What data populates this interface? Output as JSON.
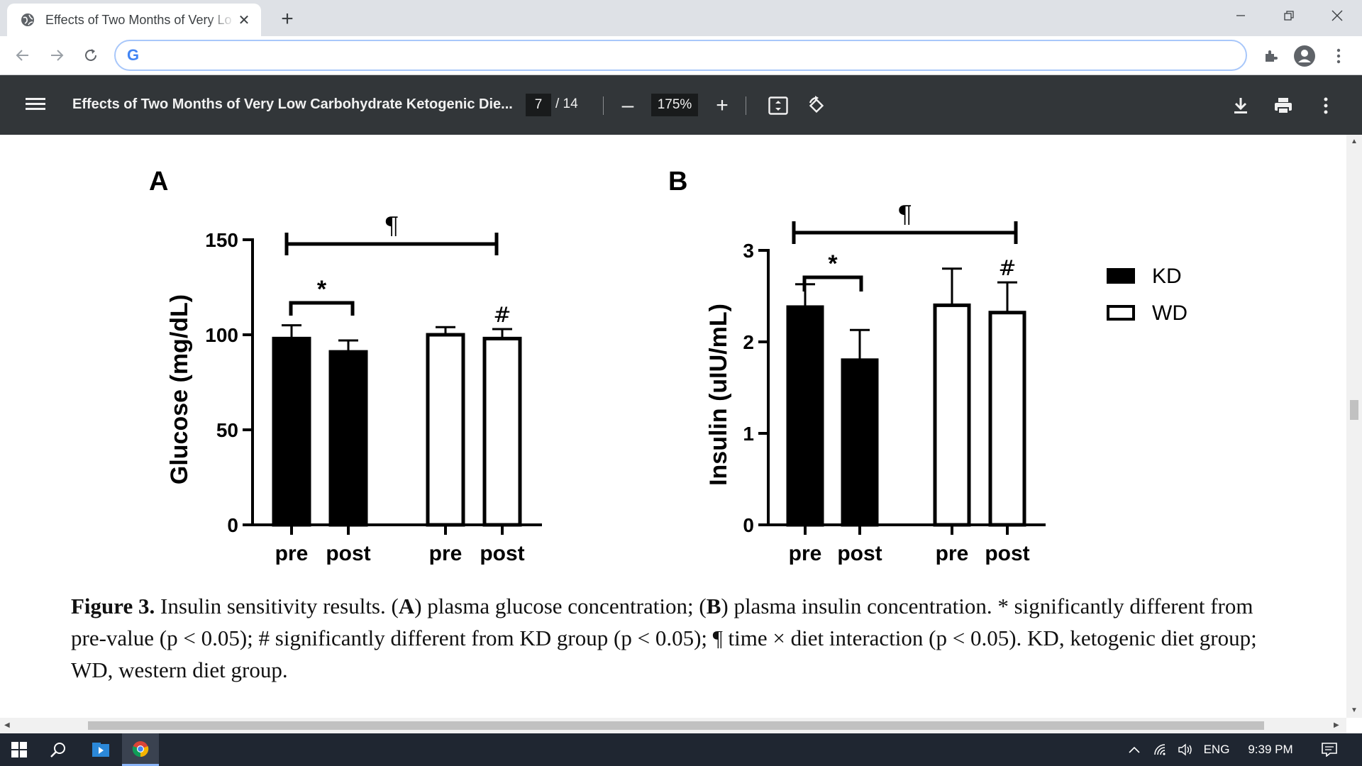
{
  "browser": {
    "tab_title": "Effects of Two Months of Very Lo",
    "tab_close": "✕",
    "new_tab": "+",
    "address": "",
    "google_letter": "G"
  },
  "pdf_viewer": {
    "title": "Effects of Two Months of Very Low Carbohydrate Ketogenic Die...",
    "current_page": "7",
    "total_pages": "/ 14",
    "zoom": "175%",
    "zoom_out": "–",
    "zoom_in": "+"
  },
  "figure": {
    "caption_label": "Figure 3.",
    "caption_text_1": " Insulin sensitivity results. (",
    "caption_a": "A",
    "caption_text_2": ") plasma glucose concentration; (",
    "caption_b": "B",
    "caption_text_3": ") plasma insulin concentration. * significantly different from pre-value (p < 0.05); # significantly different from KD group (p < 0.05); ¶ time × diet interaction (p < 0.05). KD, ketogenic diet group; WD, western diet group."
  },
  "chart_data": [
    {
      "type": "bar",
      "panel_label": "A",
      "ylabel": "Glucose (mg/dL)",
      "ylim": [
        0,
        150
      ],
      "yticks": [
        "0",
        "50",
        "100",
        "150"
      ],
      "categories": [
        "pre",
        "post",
        "pre",
        "post"
      ],
      "groups": [
        "KD",
        "KD",
        "WD",
        "WD"
      ],
      "values": [
        98,
        91,
        100,
        98
      ],
      "errors": [
        7,
        6,
        4,
        5
      ],
      "annotations": {
        "star": "*",
        "hash": "#",
        "pilcrow": "¶"
      }
    },
    {
      "type": "bar",
      "panel_label": "B",
      "ylabel": "Insulin (uIU/mL)",
      "ylim": [
        0,
        3
      ],
      "yticks": [
        "0",
        "1",
        "2",
        "3"
      ],
      "categories": [
        "pre",
        "post",
        "pre",
        "post"
      ],
      "groups": [
        "KD",
        "KD",
        "WD",
        "WD"
      ],
      "values": [
        2.38,
        1.8,
        2.4,
        2.32
      ],
      "errors": [
        0.25,
        0.33,
        0.4,
        0.33
      ],
      "annotations": {
        "star": "*",
        "hash": "#",
        "pilcrow": "¶"
      },
      "legend": [
        "KD",
        "WD"
      ],
      "legend_position": "right"
    }
  ],
  "taskbar": {
    "lang": "ENG",
    "time": "9:39 PM"
  }
}
